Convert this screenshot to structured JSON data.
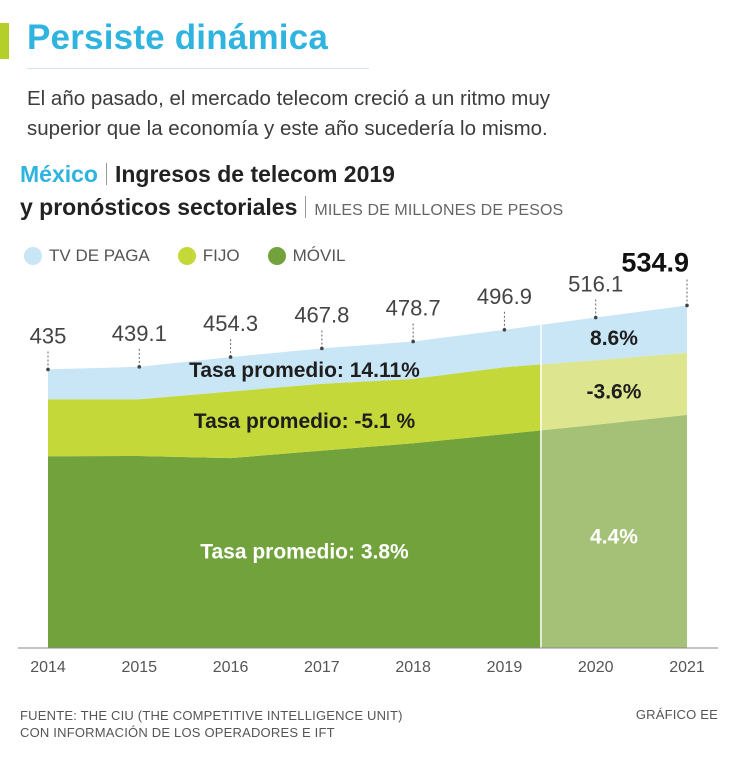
{
  "header": {
    "title": "Persiste dinámica",
    "subtitle_line1": "El año pasado, el mercado telecom creció a un ritmo muy",
    "subtitle_line2": "superior que la economía y este año sucedería lo mismo."
  },
  "chart_heading": {
    "country": "México",
    "line1": "Ingresos de telecom 2019",
    "line2": "y pronósticos sectoriales",
    "units": "MILES DE MILLONES DE PESOS"
  },
  "legend": [
    {
      "label": "TV DE PAGA",
      "color": "#c8e6f5"
    },
    {
      "label": "FIJO",
      "color": "#c4d83a"
    },
    {
      "label": "MÓVIL",
      "color": "#72a23c"
    }
  ],
  "chart_data": {
    "type": "area",
    "stacked": true,
    "x": [
      "2014",
      "2015",
      "2016",
      "2017",
      "2018",
      "2019",
      "2020",
      "2021"
    ],
    "totals": [
      435,
      439.1,
      454.3,
      467.8,
      478.7,
      496.9,
      516.1,
      534.9
    ],
    "total_labels": [
      "435",
      "439.1",
      "454.3",
      "467.8",
      "478.7",
      "496.9",
      "516.1",
      "534.9"
    ],
    "highlight_index": 7,
    "series": [
      {
        "name": "MÓVIL",
        "values": [
          299.5,
          299.9,
          296.6,
          308.3,
          319.7,
          334.0,
          348.7,
          364.0
        ],
        "color": "#72a23c",
        "forecast_color": "#a5c178"
      },
      {
        "name": "FIJO",
        "values": [
          89.1,
          88.6,
          103.9,
          104.3,
          100.6,
          104.5,
          100.7,
          97.1
        ],
        "color": "#c4d83a",
        "forecast_color": "#dde68f"
      },
      {
        "name": "TV DE PAGA",
        "values": [
          46.4,
          50.6,
          53.8,
          55.2,
          58.4,
          58.4,
          66.7,
          73.8
        ],
        "color": "#c8e6f5",
        "forecast_color": "#c8e6f5"
      }
    ],
    "forecast_from": "2019",
    "ylim": [
      0,
      570
    ],
    "annotations": {
      "historical": [
        {
          "series": "TV DE PAGA",
          "text": "Tasa promedio: 14.11%"
        },
        {
          "series": "FIJO",
          "text": "Tasa promedio: -5.1 %"
        },
        {
          "series": "MÓVIL",
          "text": "Tasa promedio:  3.8%"
        }
      ],
      "forecast": [
        {
          "series": "TV DE PAGA",
          "text": "8.6%"
        },
        {
          "series": "FIJO",
          "text": "-3.6%"
        },
        {
          "series": "MÓVIL",
          "text": "4.4%"
        }
      ]
    }
  },
  "footer": {
    "source_line1": "FUENTE: THE CIU (THE COMPETITIVE INTELLIGENCE UNIT)",
    "source_line2": "CON INFORMACIÓN DE LOS OPERADORES E IFT",
    "credit": "GRÁFICO EE"
  }
}
